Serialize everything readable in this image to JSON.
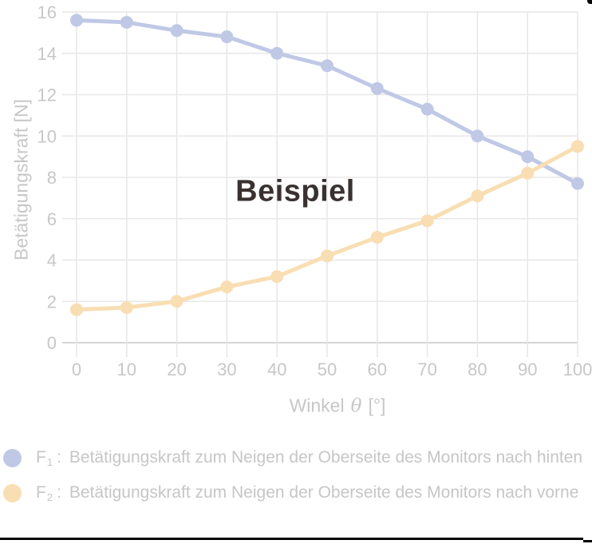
{
  "colors": {
    "background": "#ffffff",
    "series_f1": "#bfc9e6",
    "series_f2": "#f8deb2",
    "grid": "#e7e7e7",
    "axis": "#d4d4d4",
    "tick_label": "#c7c7c7",
    "axis_title": "#c7c7c7",
    "annotation_text": "#3a3230",
    "legend_text": "#c6c6c6",
    "rule_black": "#060606"
  },
  "chart_data": {
    "type": "line",
    "annotation": "Beispiel",
    "x": [
      0,
      10,
      20,
      30,
      40,
      50,
      60,
      70,
      80,
      90,
      100
    ],
    "series": [
      {
        "name": "F1",
        "values": [
          15.6,
          15.5,
          15.1,
          14.8,
          14.0,
          13.4,
          12.3,
          11.3,
          10.0,
          9.0,
          7.7
        ],
        "color": "#bfc9e6"
      },
      {
        "name": "F2",
        "values": [
          1.6,
          1.7,
          2.0,
          2.7,
          3.2,
          4.2,
          5.1,
          5.9,
          7.1,
          8.2,
          9.5
        ],
        "color": "#f8deb2"
      }
    ],
    "xlabel": {
      "pre": "Winkel",
      "symbol": "θ",
      "post": "[°]"
    },
    "ylabel": "Betätigungskraft  [N]",
    "xlim": [
      0,
      100
    ],
    "ylim": [
      0,
      16
    ],
    "xticks": [
      0,
      10,
      20,
      30,
      40,
      50,
      60,
      70,
      80,
      90,
      100
    ],
    "yticks": [
      0,
      2,
      4,
      6,
      8,
      10,
      12,
      14,
      16
    ],
    "grid": true,
    "legend_position": "bottom"
  },
  "legend": {
    "items": [
      {
        "f": "F",
        "sub": "1",
        "sep": ":",
        "text": "Betätigungskraft zum Neigen der Oberseite des Monitors nach hinten",
        "color": "#bfc9e6"
      },
      {
        "f": "F",
        "sub": "2",
        "sep": ":",
        "text": "Betätigungskraft zum Neigen der Oberseite des Monitors nach vorne",
        "color": "#f8deb2"
      }
    ]
  }
}
